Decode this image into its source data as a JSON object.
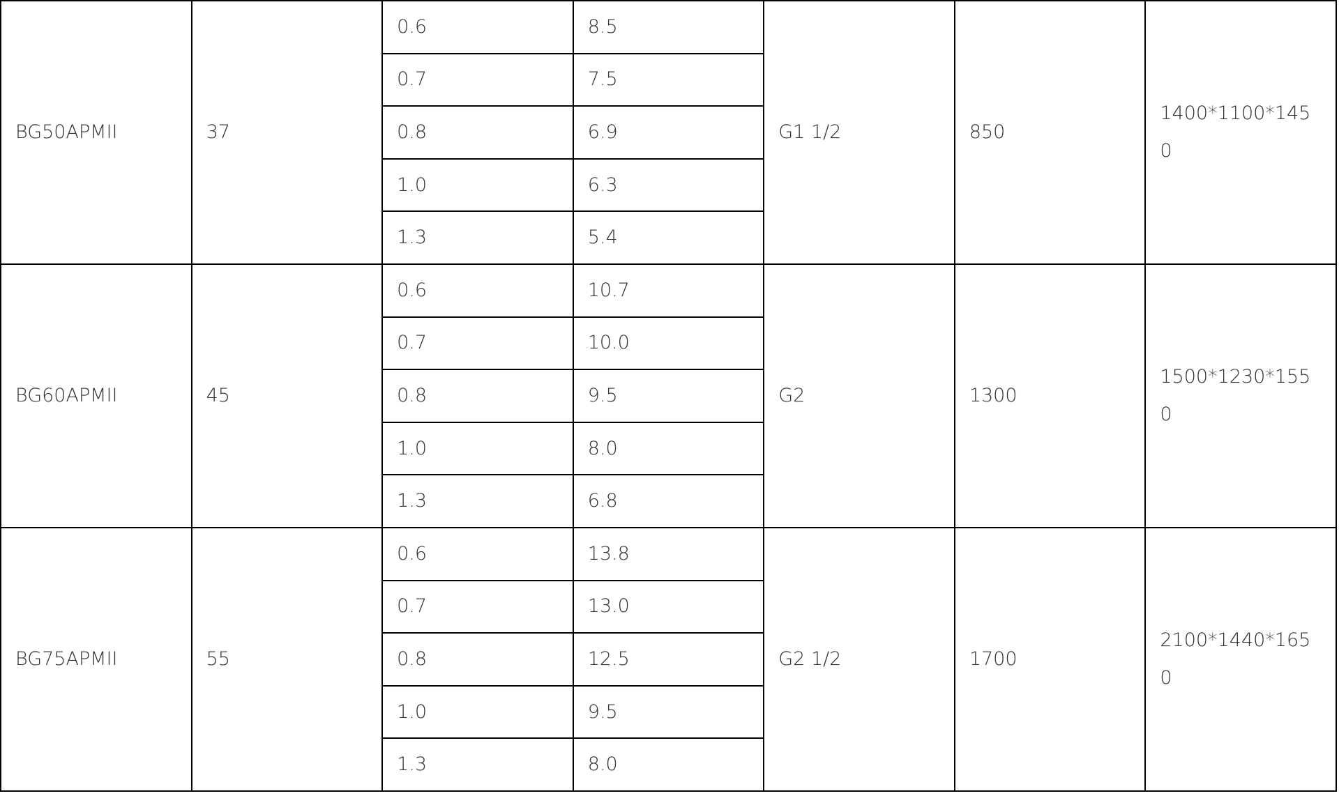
{
  "rows": [
    {
      "model": "BG50APMII",
      "power": "37",
      "specs": [
        [
          "0.6",
          "8.5"
        ],
        [
          "0.7",
          "7.5"
        ],
        [
          "0.8",
          "6.9"
        ],
        [
          "1.0",
          "6.3"
        ],
        [
          "1.3",
          "5.4"
        ]
      ],
      "connection": "G1 1/2",
      "weight": "850",
      "dimensions": "1400*1100*1450"
    },
    {
      "model": "BG60APMII",
      "power": "45",
      "specs": [
        [
          "0.6",
          "10.7"
        ],
        [
          "0.7",
          "10.0"
        ],
        [
          "0.8",
          "9.5"
        ],
        [
          "1.0",
          "8.0"
        ],
        [
          "1.3",
          "6.8"
        ]
      ],
      "connection": "G2",
      "weight": "1300",
      "dimensions": "1500*1230*1550"
    },
    {
      "model": "BG75APMII",
      "power": "55",
      "specs": [
        [
          "0.6",
          "13.8"
        ],
        [
          "0.7",
          "13.0"
        ],
        [
          "0.8",
          "12.5"
        ],
        [
          "1.0",
          "9.5"
        ],
        [
          "1.3",
          "8.0"
        ]
      ],
      "connection": "G2 1/2",
      "weight": "1700",
      "dimensions": "2100*1440*1650"
    }
  ]
}
